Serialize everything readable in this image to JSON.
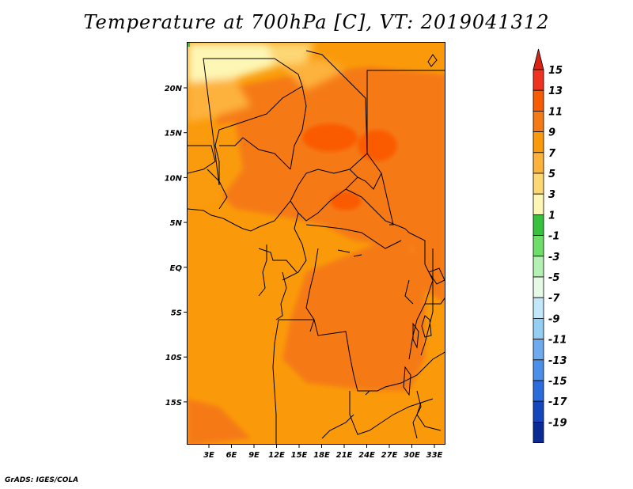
{
  "title": "Temperature at 700hPa [C], VT: 2019041312",
  "credit": "GrADS: IGES/COLA",
  "map": {
    "lat_labels": [
      "20N",
      "15N",
      "10N",
      "5N",
      "EQ",
      "5S",
      "10S",
      "15S"
    ],
    "lon_labels": [
      "3E",
      "6E",
      "9E",
      "12E",
      "15E",
      "18E",
      "21E",
      "24E",
      "27E",
      "30E",
      "33E"
    ]
  },
  "colorbar": {
    "levels": [
      {
        "label": "15",
        "color": "#f0321e"
      },
      {
        "label": "13",
        "color": "#fa5a00"
      },
      {
        "label": "11",
        "color": "#f57a14"
      },
      {
        "label": "9",
        "color": "#fa9a0a"
      },
      {
        "label": "7",
        "color": "#fdb23c"
      },
      {
        "label": "5",
        "color": "#fdd774"
      },
      {
        "label": "3",
        "color": "#fdf6b4"
      },
      {
        "label": "1",
        "color": "#36c23d"
      },
      {
        "label": "-1",
        "color": "#6ede6a"
      },
      {
        "label": "-3",
        "color": "#b4f0b2"
      },
      {
        "label": "-5",
        "color": "#e4fae4"
      },
      {
        "label": "-7",
        "color": "#c2e6fa"
      },
      {
        "label": "-9",
        "color": "#94cef4"
      },
      {
        "label": "-11",
        "color": "#6eaaee"
      },
      {
        "label": "-13",
        "color": "#4a8fea"
      },
      {
        "label": "-15",
        "color": "#2a6cdb"
      },
      {
        "label": "-17",
        "color": "#1446be"
      },
      {
        "label": "-19",
        "color": "#0a2a96"
      }
    ],
    "over_color": "#d92314",
    "under_color": "#0a127a",
    "under_end_color": "#d8d4f4"
  }
}
